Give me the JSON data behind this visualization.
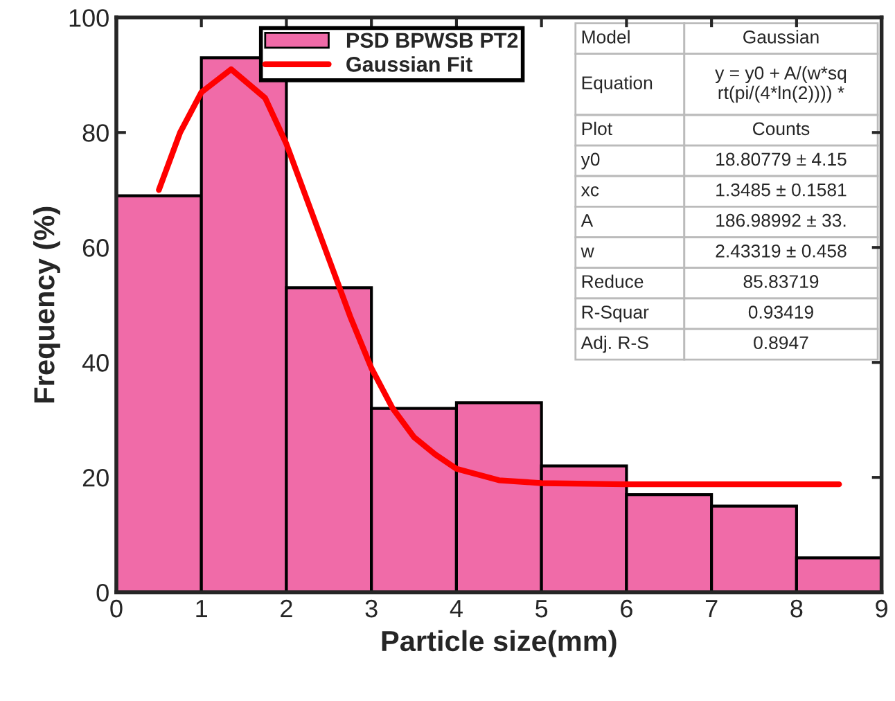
{
  "chart_data": {
    "type": "histogram",
    "xlabel": "Particle size(mm)",
    "ylabel": "Frequency (%)",
    "bins": [
      0,
      1,
      2,
      3,
      4,
      5,
      6,
      7,
      8,
      9
    ],
    "series": [
      {
        "name": "PSD BPWSB PT2",
        "color": "#f06ba8",
        "values": [
          69,
          93,
          53,
          32,
          33,
          22,
          17,
          15,
          6
        ]
      },
      {
        "name": "Gaussian Fit",
        "type": "line",
        "color": "#ff0000",
        "x": [
          0.5,
          0.75,
          1,
          1.35,
          1.75,
          2,
          2.25,
          2.5,
          2.75,
          3,
          3.25,
          3.5,
          3.75,
          4,
          4.5,
          5,
          6,
          7,
          8,
          8.5
        ],
        "values": [
          70,
          80,
          87,
          91,
          86,
          78,
          68,
          58,
          48,
          39,
          32,
          27,
          24,
          21.5,
          19.5,
          19,
          18.8,
          18.8,
          18.8,
          18.8
        ]
      }
    ],
    "xlim": [
      0,
      9
    ],
    "xticks": [
      0,
      1,
      2,
      3,
      4,
      5,
      6,
      7,
      8,
      9
    ],
    "ylim": [
      0,
      100
    ],
    "yticks": [
      0,
      20,
      40,
      60,
      80,
      100
    ],
    "legend": "top",
    "grid": false,
    "annotations": [
      "Model",
      "Gaussian",
      "Equation",
      "y = y0 + A/(w*sq\nrt(pi/(4*ln(2)))) *",
      "Plot",
      "Counts",
      "y0",
      "18.80779 ± 4.15",
      "xc",
      "1.3485 ± 0.1581",
      "A",
      "186.98992 ± 33.",
      "w",
      "2.43319 ± 0.458",
      "Reduce",
      "85.83719",
      "R-Squar",
      "0.93419",
      "Adj. R-S",
      "0.8947"
    ]
  }
}
